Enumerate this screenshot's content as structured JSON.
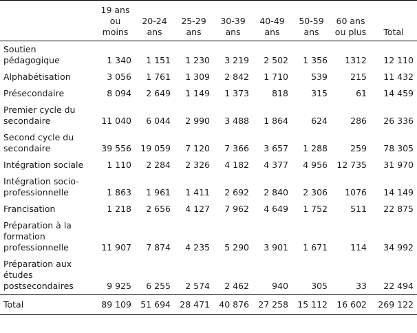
{
  "table": {
    "columns": [
      [
        "19 ans",
        "ou moins"
      ],
      [
        "20-24",
        "ans"
      ],
      [
        "25-29",
        "ans"
      ],
      [
        "30-39",
        "ans"
      ],
      [
        "40-49",
        "ans"
      ],
      [
        "50-59",
        "ans"
      ],
      [
        "60 ans",
        "ou plus"
      ],
      [
        "Total"
      ]
    ],
    "rows": [
      {
        "label": [
          "Soutien",
          "pédagogique"
        ],
        "values": [
          "1 340",
          "1 151",
          "1 230",
          "3 219",
          "2 502",
          "1 356",
          "1312",
          "12 110"
        ]
      },
      {
        "label": [
          "Alphabétisation"
        ],
        "values": [
          "3 056",
          "1 761",
          "1 309",
          "2 842",
          "1 710",
          "539",
          "215",
          "11 432"
        ]
      },
      {
        "label": [
          "Présecondaire"
        ],
        "values": [
          "8 094",
          "2 649",
          "1 149",
          "1 373",
          "818",
          "315",
          "61",
          "14 459"
        ]
      },
      {
        "label": [
          "Premier cycle du",
          "secondaire"
        ],
        "values": [
          "11 040",
          "6 044",
          "2 990",
          "3 488",
          "1 864",
          "624",
          "286",
          "26 336"
        ]
      },
      {
        "label": [
          "Second cycle du",
          "secondaire"
        ],
        "values": [
          "39 556",
          "19 059",
          "7 120",
          "7 366",
          "3 657",
          "1 288",
          "259",
          "78 305"
        ]
      },
      {
        "label": [
          "Intégration sociale"
        ],
        "values": [
          "1 110",
          "2 284",
          "2 326",
          "4 182",
          "4 377",
          "4 956",
          "12 735",
          "31 970"
        ]
      },
      {
        "label": [
          "Intégration socio-",
          "professionnelle"
        ],
        "values": [
          "1 863",
          "1 961",
          "1 411",
          "2 692",
          "2 840",
          "2 306",
          "1076",
          "14 149"
        ]
      },
      {
        "label": [
          "Francisation"
        ],
        "values": [
          "1 218",
          "2 656",
          "4 127",
          "7 962",
          "4 649",
          "1 752",
          "511",
          "22 875"
        ]
      },
      {
        "label": [
          "Préparation à la",
          "formation",
          "professionnelle"
        ],
        "values": [
          "11 907",
          "7 874",
          "4 235",
          "5 290",
          "3 901",
          "1 671",
          "114",
          "34 992"
        ]
      },
      {
        "label": [
          "Préparation aux",
          "études",
          "postsecondaires"
        ],
        "values": [
          "9 925",
          "6 255",
          "2 574",
          "2 462",
          "940",
          "305",
          "33",
          "22 494"
        ]
      }
    ],
    "total": {
      "label": [
        "Total"
      ],
      "values": [
        "89 109",
        "51 694",
        "28 471",
        "40 876",
        "27 258",
        "15 112",
        "16 602",
        "269 122"
      ]
    }
  }
}
